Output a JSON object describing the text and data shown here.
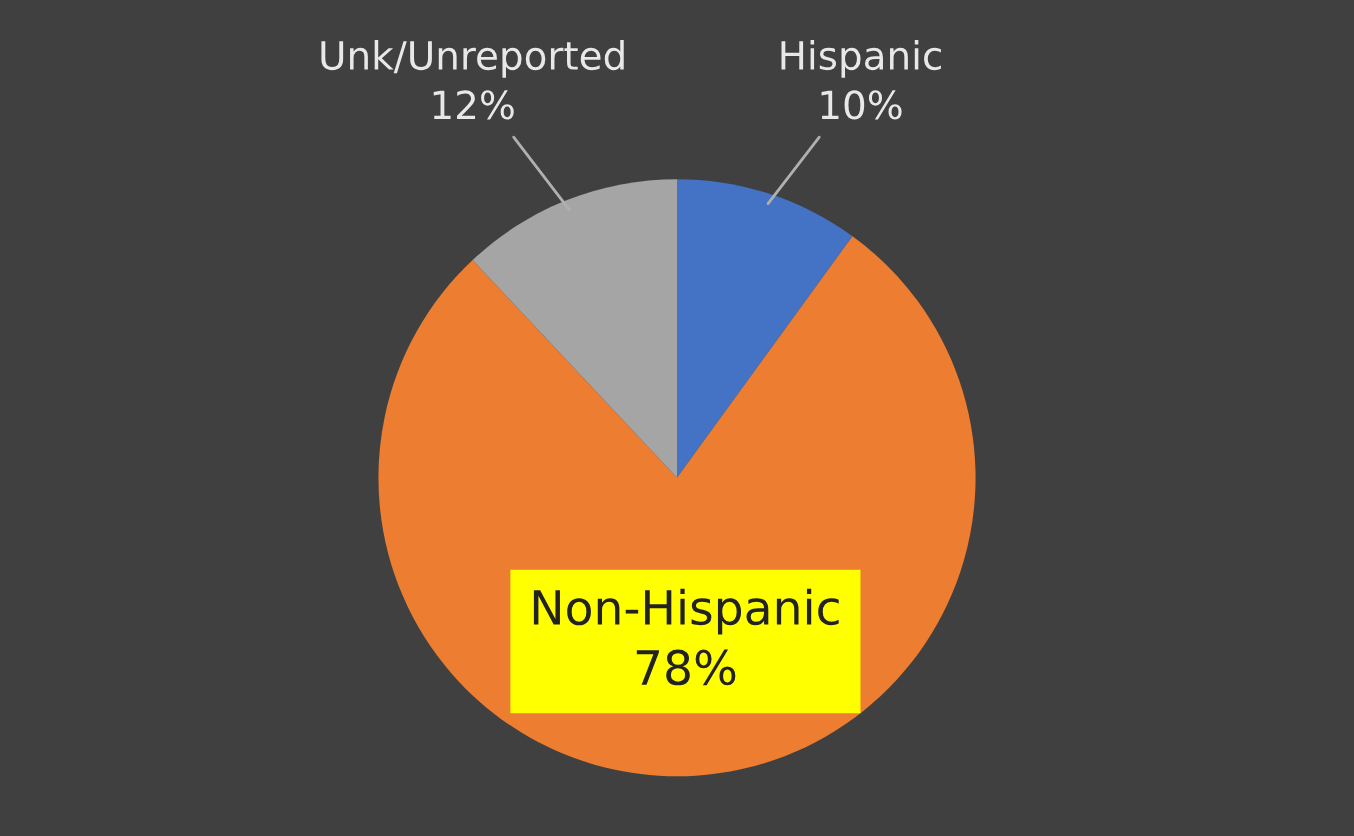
{
  "chart_data": {
    "type": "pie",
    "categories": [
      "Hispanic",
      "Non-Hispanic",
      "Unk/Unreported"
    ],
    "values": [
      10,
      78,
      12
    ],
    "colors": [
      "#4472c4",
      "#ed7d31",
      "#a5a5a5"
    ],
    "value_labels": [
      "10%",
      "78%",
      "12%"
    ],
    "legend": false
  }
}
